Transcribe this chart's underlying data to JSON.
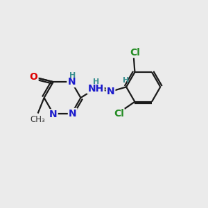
{
  "bg_color": "#ebebeb",
  "atom_colors": {
    "C": "#000000",
    "N": "#1a1acc",
    "O": "#dd0000",
    "Cl": "#228B22",
    "H": "#3a9090"
  },
  "bond_color": "#1a1a1a",
  "bond_width": 1.6,
  "font_size_atom": 10,
  "font_size_h": 8,
  "font_size_methyl": 8.5
}
